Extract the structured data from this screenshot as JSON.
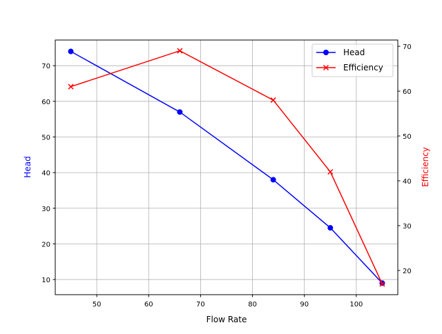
{
  "chart_data": {
    "type": "line",
    "title": "",
    "xlabel": "Flow Rate",
    "ylabel": "Head",
    "y2label": "Efficiency",
    "x": [
      45,
      66,
      84,
      95,
      105
    ],
    "xlim": [
      42,
      108
    ],
    "ylim": [
      5.75,
      77.2
    ],
    "y2lim": [
      14.6,
      71.4
    ],
    "xticks": [
      50,
      60,
      70,
      80,
      90,
      100
    ],
    "yticks": [
      10,
      20,
      30,
      40,
      50,
      60,
      70
    ],
    "y2ticks": [
      20,
      30,
      40,
      50,
      60,
      70
    ],
    "grid": true,
    "legend_position": "top-right",
    "series": [
      {
        "name": "Head",
        "axis": "left",
        "values": [
          74,
          57,
          38,
          24.5,
          9
        ],
        "color": "#0000ff",
        "marker": "circle"
      },
      {
        "name": "Efficiency",
        "axis": "right",
        "values": [
          61,
          69,
          58,
          42,
          17
        ],
        "color": "#ff0000",
        "marker": "x"
      }
    ],
    "ylabel_color": "#0000ff",
    "y2label_color": "#ff0000"
  }
}
